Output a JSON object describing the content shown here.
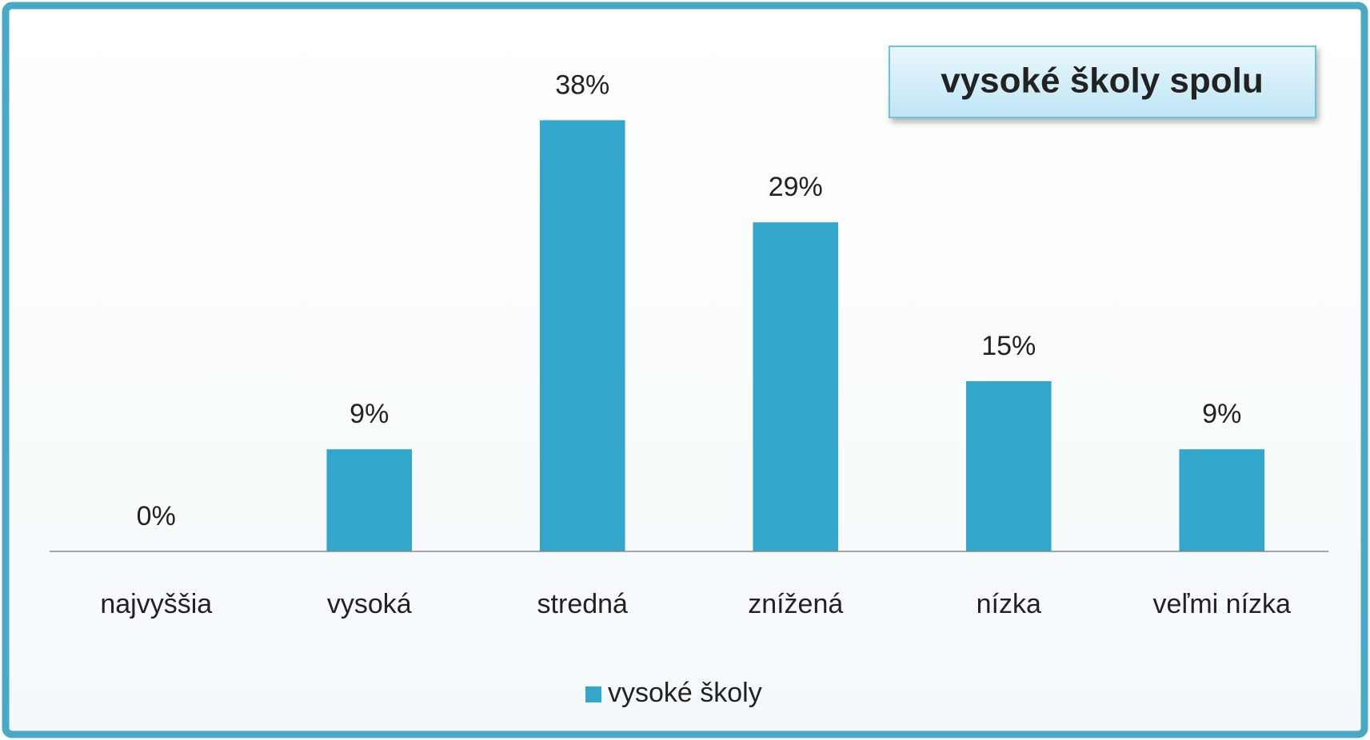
{
  "chart_data": {
    "type": "bar",
    "title": "vysoké školy spolu",
    "categories": [
      "najvyššia",
      "vysoká",
      "stredná",
      "znížená",
      "nízka",
      "veľmi nízka"
    ],
    "series": [
      {
        "name": "vysoké školy",
        "color": "#33a7cb",
        "values": [
          0,
          9,
          38,
          29,
          15,
          9
        ],
        "value_labels": [
          "0%",
          "9%",
          "38%",
          "29%",
          "15%",
          "9%"
        ]
      }
    ],
    "ylim": [
      0,
      40
    ],
    "legend": "bottom"
  }
}
